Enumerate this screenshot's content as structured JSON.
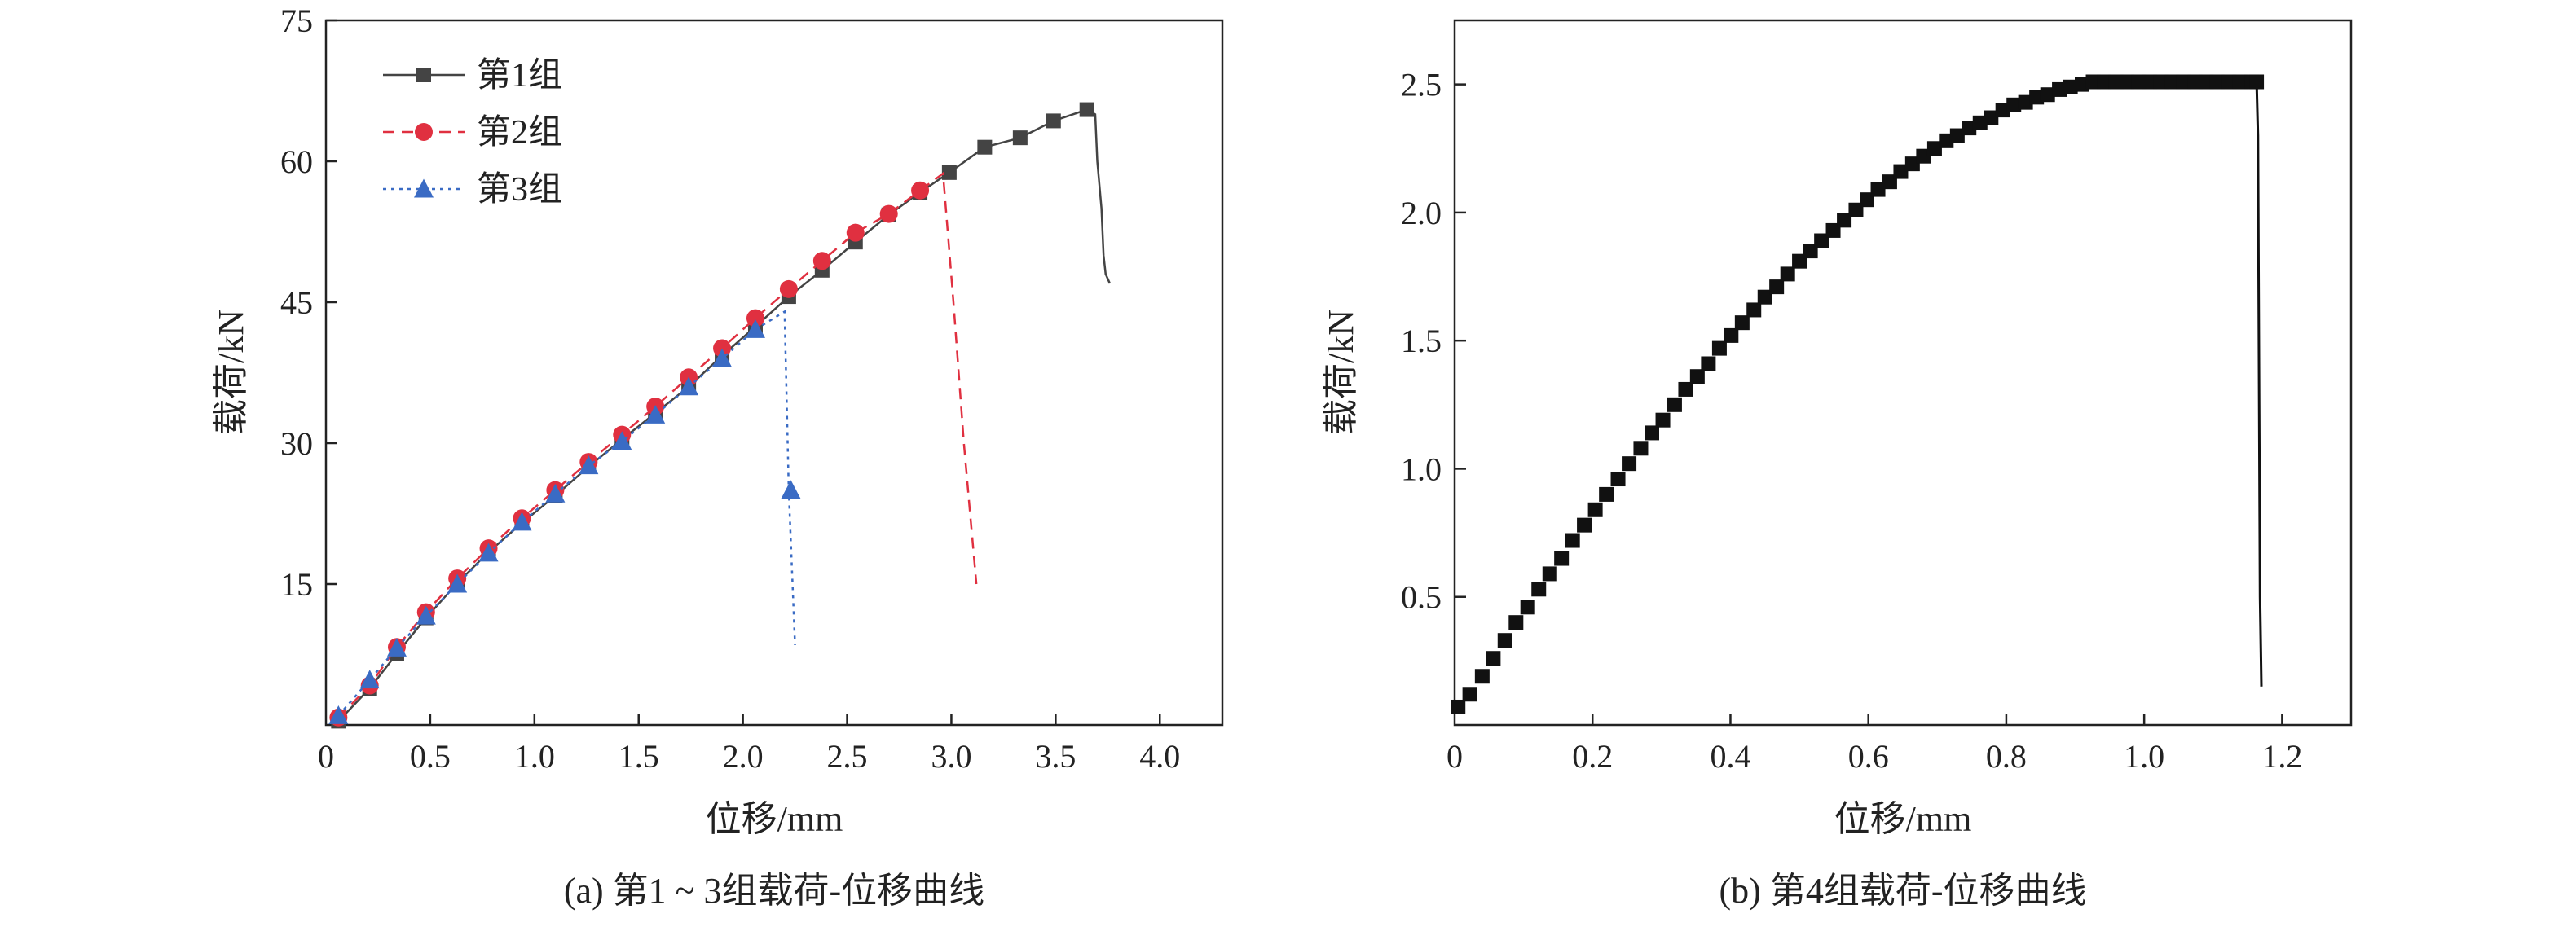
{
  "chart_data": [
    {
      "type": "line",
      "caption": "(a) 第1 ~ 3组载荷-位移曲线",
      "xlabel": "位移/mm",
      "ylabel": "载荷/kN",
      "xlim": [
        0,
        4.3
      ],
      "ylim": [
        0,
        75
      ],
      "x_ticks": [
        "0",
        "0.5",
        "1.0",
        "1.5",
        "2.0",
        "2.5",
        "3.0",
        "3.5",
        "4.0"
      ],
      "x_tick_values": [
        0,
        0.5,
        1.0,
        1.5,
        2.0,
        2.5,
        3.0,
        3.5,
        4.0
      ],
      "y_ticks": [
        "15",
        "30",
        "45",
        "60",
        "75"
      ],
      "y_tick_values": [
        15,
        30,
        45,
        60,
        75
      ],
      "legend_position": "top-left",
      "series": [
        {
          "name": "第1组",
          "color": "#444444",
          "line": "solid",
          "marker": "square",
          "x": [
            0.06,
            0.21,
            0.34,
            0.48,
            0.63,
            0.78,
            0.94,
            1.1,
            1.26,
            1.42,
            1.58,
            1.74,
            1.9,
            2.06,
            2.22,
            2.38,
            2.54,
            2.7,
            2.85,
            2.99,
            3.16,
            3.33,
            3.49,
            3.65
          ],
          "y": [
            0.4,
            3.9,
            7.6,
            11.4,
            15.1,
            18.4,
            21.5,
            24.4,
            27.5,
            30.4,
            33.2,
            36.0,
            39.3,
            42.4,
            45.6,
            48.4,
            51.4,
            54.3,
            56.7,
            58.8,
            61.5,
            62.5,
            64.3,
            65.5
          ],
          "tail_x": [
            3.65,
            3.69,
            3.7,
            3.72,
            3.73,
            3.74,
            3.76
          ],
          "tail_y": [
            65.5,
            65.0,
            60.0,
            55.0,
            50.0,
            48.0,
            47.0
          ]
        },
        {
          "name": "第2组",
          "color": "#e03040",
          "line": "dashed",
          "marker": "circle",
          "x": [
            0.06,
            0.21,
            0.34,
            0.48,
            0.63,
            0.78,
            0.94,
            1.1,
            1.26,
            1.42,
            1.58,
            1.74,
            1.9,
            2.06,
            2.22,
            2.38,
            2.54,
            2.7,
            2.85
          ],
          "y": [
            0.8,
            4.2,
            8.3,
            12.0,
            15.6,
            18.8,
            22.0,
            25.0,
            28.0,
            30.9,
            33.9,
            37.0,
            40.1,
            43.3,
            46.4,
            49.4,
            52.4,
            54.4,
            56.9
          ],
          "tail_x": [
            2.85,
            2.96,
            3.01,
            3.06,
            3.12
          ],
          "tail_y": [
            56.9,
            58.7,
            45.0,
            30.0,
            15.0
          ]
        },
        {
          "name": "第3组",
          "color": "#3a6bc4",
          "line": "dotted",
          "marker": "triangle",
          "x": [
            0.06,
            0.21,
            0.34,
            0.48,
            0.63,
            0.78,
            0.94,
            1.1,
            1.26,
            1.42,
            1.58,
            1.74,
            1.9,
            2.06,
            2.23
          ],
          "y": [
            1.0,
            4.8,
            8.2,
            11.6,
            15.0,
            18.3,
            21.6,
            24.6,
            27.6,
            30.2,
            33.0,
            36.0,
            39.0,
            42.1,
            25.0
          ],
          "tail_x": [
            2.06,
            2.2,
            2.22,
            2.25
          ],
          "tail_y": [
            42.1,
            44.0,
            25.0,
            8.5
          ]
        }
      ]
    },
    {
      "type": "scatter",
      "caption": "(b) 第4组载荷-位移曲线",
      "xlabel": "位移/mm",
      "ylabel": "载荷/kN",
      "xlim": [
        0,
        1.3
      ],
      "ylim": [
        0,
        2.75
      ],
      "x_ticks": [
        "0",
        "0.2",
        "0.4",
        "0.6",
        "0.8",
        "1.0",
        "1.2"
      ],
      "x_tick_values": [
        0,
        0.2,
        0.4,
        0.6,
        0.8,
        1.0,
        1.2
      ],
      "y_ticks": [
        "0.5",
        "1.0",
        "1.5",
        "2.0",
        "2.5"
      ],
      "y_tick_values": [
        0.5,
        1.0,
        1.5,
        2.0,
        2.5
      ],
      "series": [
        {
          "color": "#111111",
          "marker": "square",
          "x": [
            0.005,
            0.022,
            0.04,
            0.056,
            0.073,
            0.089,
            0.106,
            0.122,
            0.138,
            0.155,
            0.171,
            0.188,
            0.204,
            0.22,
            0.237,
            0.253,
            0.27,
            0.286,
            0.302,
            0.319,
            0.335,
            0.352,
            0.368,
            0.384,
            0.401,
            0.417,
            0.434,
            0.45,
            0.467,
            0.483,
            0.5,
            0.516,
            0.532,
            0.549,
            0.565,
            0.582,
            0.598,
            0.614,
            0.631,
            0.647,
            0.664,
            0.68,
            0.696,
            0.713,
            0.729,
            0.746,
            0.762,
            0.778,
            0.795,
            0.811,
            0.828,
            0.844,
            0.86,
            0.877,
            0.893,
            0.91,
            0.926,
            0.942,
            0.959,
            0.975,
            0.992,
            1.008,
            1.024,
            1.041,
            1.057,
            1.074,
            1.09,
            1.106,
            1.123,
            1.139,
            1.156,
            1.163
          ],
          "y": [
            0.07,
            0.12,
            0.19,
            0.26,
            0.33,
            0.4,
            0.46,
            0.53,
            0.59,
            0.65,
            0.72,
            0.78,
            0.84,
            0.9,
            0.96,
            1.02,
            1.08,
            1.14,
            1.19,
            1.25,
            1.31,
            1.36,
            1.41,
            1.47,
            1.52,
            1.57,
            1.62,
            1.67,
            1.71,
            1.76,
            1.81,
            1.85,
            1.89,
            1.93,
            1.97,
            2.01,
            2.05,
            2.09,
            2.12,
            2.16,
            2.19,
            2.22,
            2.25,
            2.28,
            2.3,
            2.33,
            2.35,
            2.37,
            2.4,
            2.42,
            2.43,
            2.45,
            2.46,
            2.48,
            2.49,
            2.5,
            2.51,
            2.51,
            2.51,
            2.51,
            2.51,
            2.51,
            2.51,
            2.51,
            2.51,
            2.51,
            2.51,
            2.51,
            2.51,
            2.51,
            2.51,
            2.51
          ],
          "tail_x": [
            1.163,
            1.165,
            1.168,
            1.17
          ],
          "tail_y": [
            2.51,
            2.3,
            0.5,
            0.15
          ]
        }
      ]
    }
  ]
}
